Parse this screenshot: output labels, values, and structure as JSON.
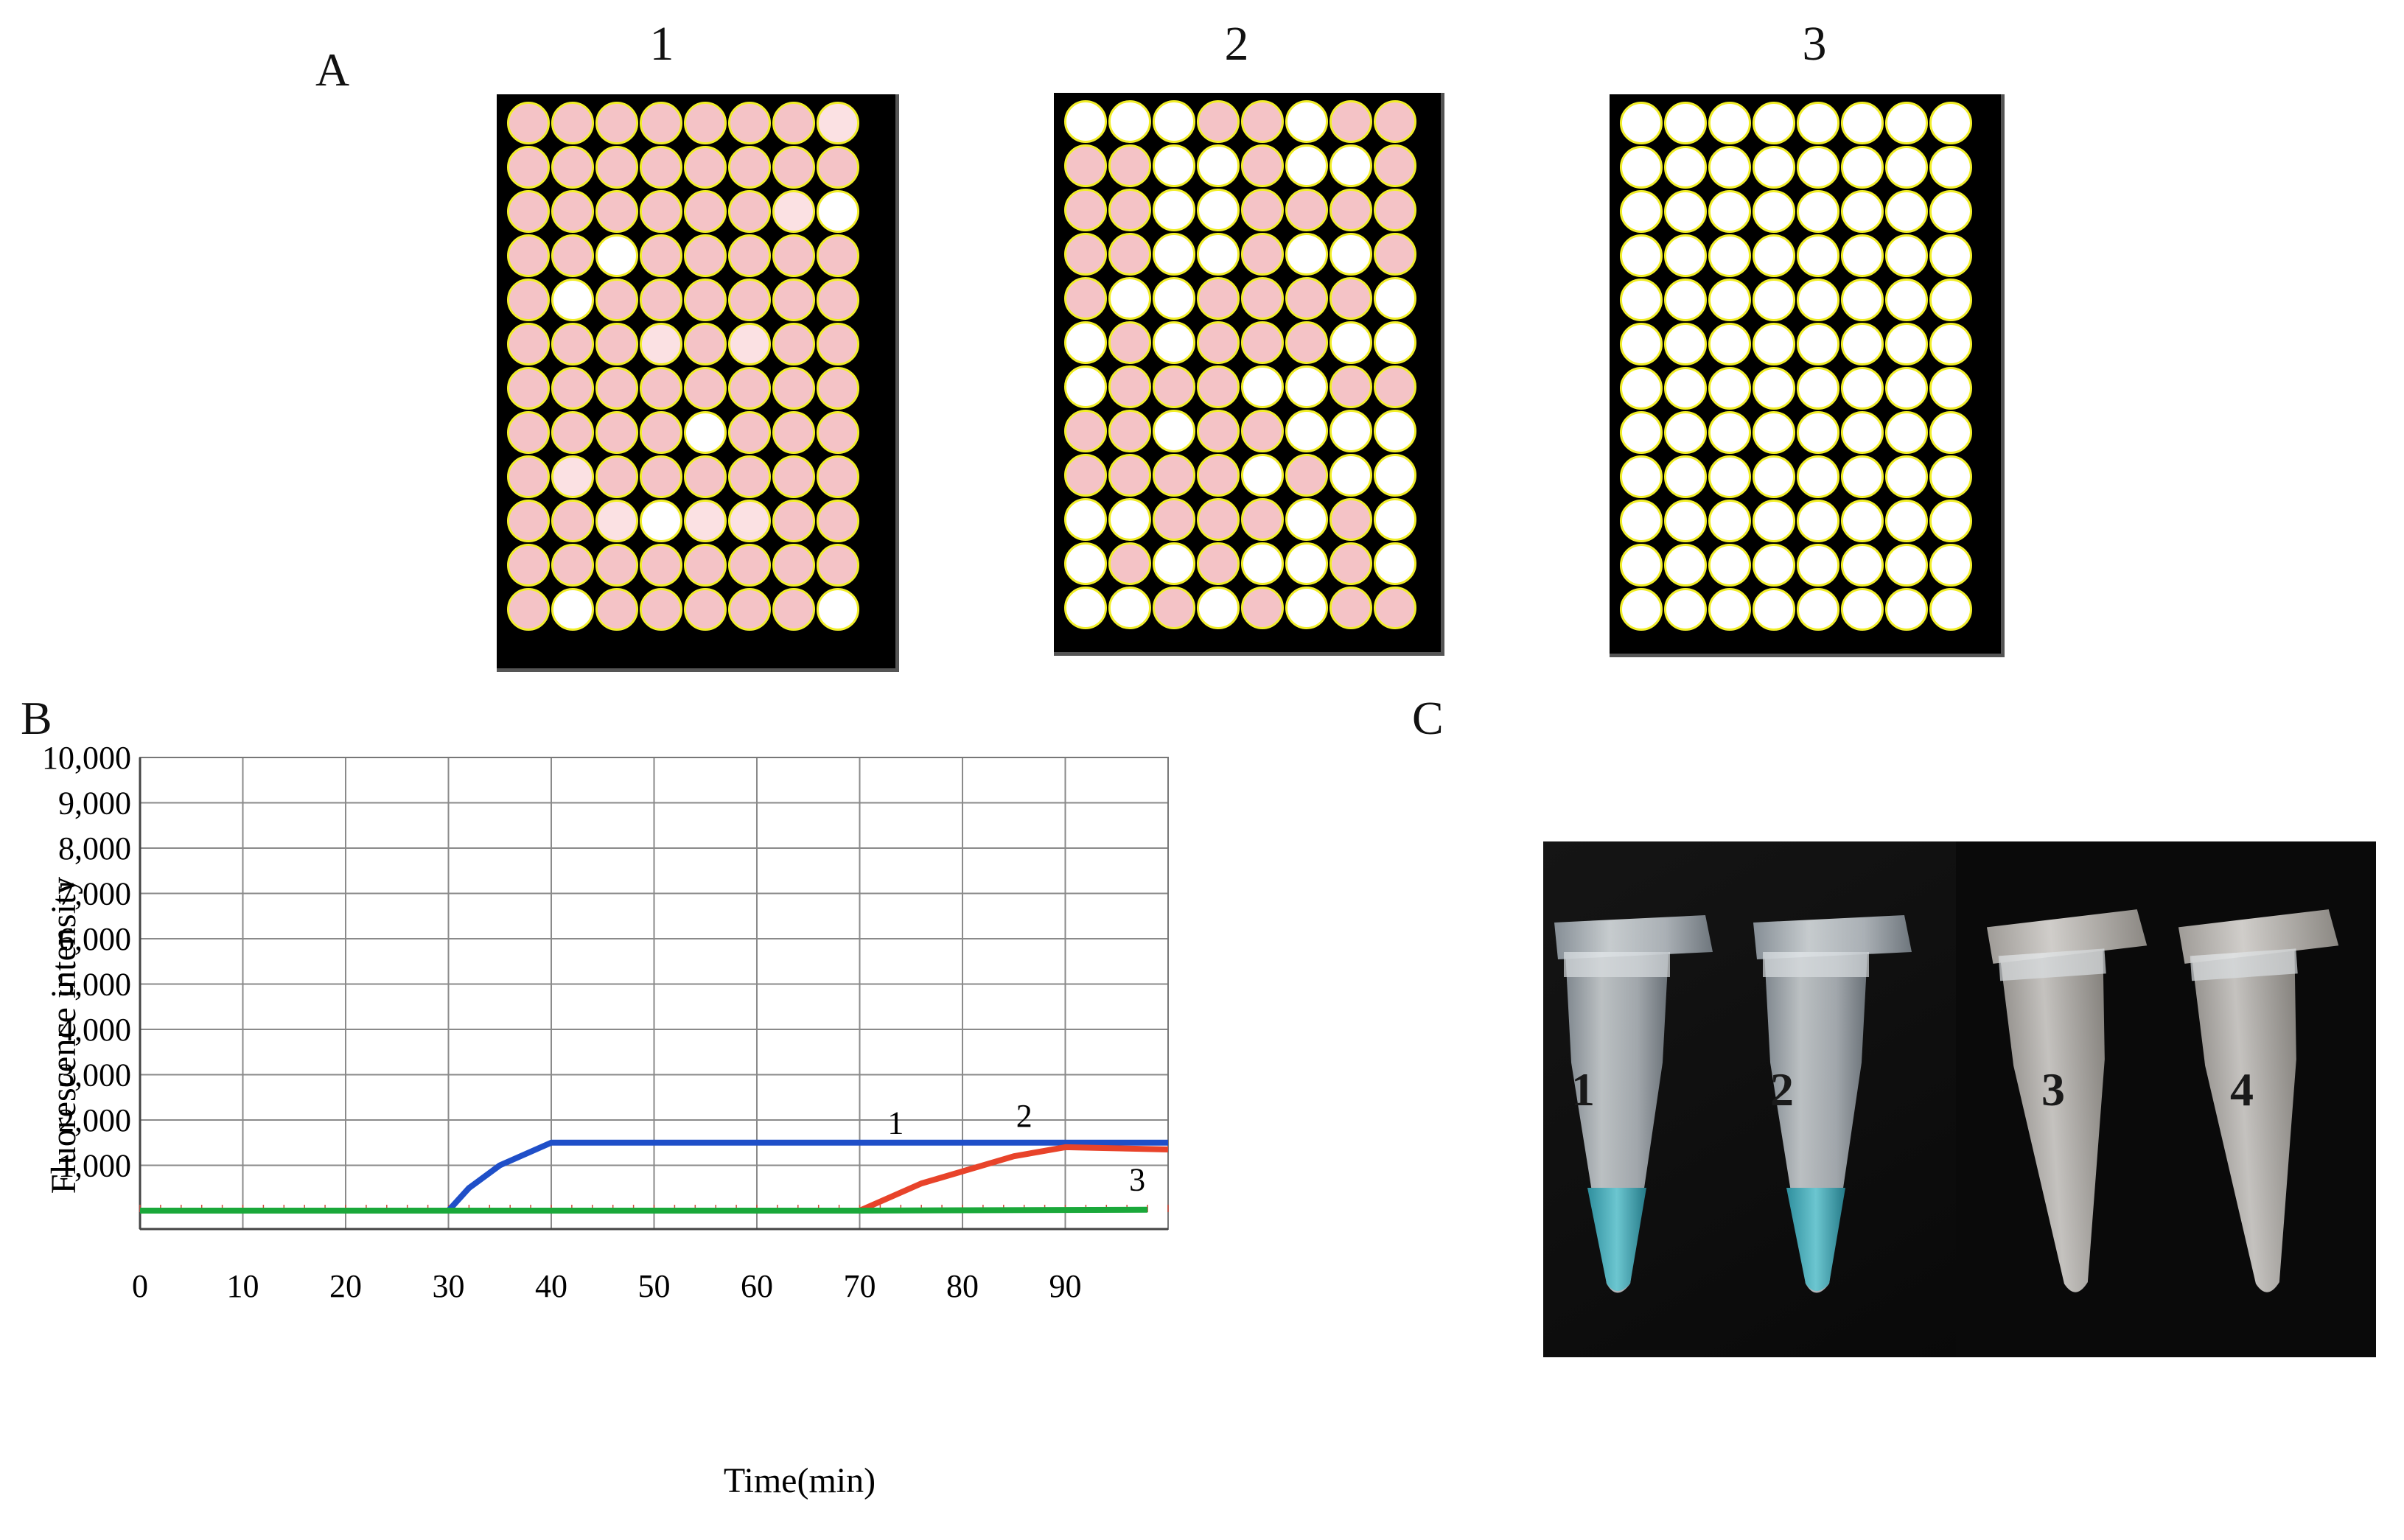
{
  "panels": {
    "a": "A",
    "b": "B",
    "c": "C"
  },
  "plates": [
    {
      "label": "1"
    },
    {
      "label": "2"
    },
    {
      "label": "3"
    }
  ],
  "colors": {
    "positive_well": "#f4c3c6",
    "negative_well": "#ffffff",
    "well_outline": "#f1ee2a",
    "plate_bg": "#000000",
    "tube_blue": "#3fa9b8"
  },
  "chart_data": {
    "type": "line",
    "title": "",
    "xlabel": "Time(min)",
    "ylabel": "Fluorescence intensity",
    "xlim": [
      0,
      100
    ],
    "ylim": [
      0,
      10000
    ],
    "xticks": [
      "0",
      "10",
      "20",
      "30",
      "40",
      "50",
      "60",
      "70",
      "80",
      "90"
    ],
    "yticks": [
      "1,000",
      "2,000",
      "3,000",
      "4,000",
      "5,000",
      "6,000",
      "7,000",
      "8,000",
      "9,000",
      "10,000"
    ],
    "grid": true,
    "series": [
      {
        "name": "1",
        "color": "#1f4fc8",
        "x": [
          0,
          30,
          32,
          35,
          40,
          100
        ],
        "y": [
          0,
          0,
          500,
          1000,
          1500,
          1500
        ]
      },
      {
        "name": "2",
        "color": "#e8432a",
        "x": [
          0,
          70,
          76,
          85,
          90,
          100
        ],
        "y": [
          0,
          0,
          600,
          1200,
          1400,
          1350
        ]
      },
      {
        "name": "3",
        "color": "#1aa83a",
        "x": [
          0,
          70,
          98
        ],
        "y": [
          0,
          0,
          20
        ]
      }
    ]
  },
  "tubes": [
    {
      "label": "1"
    },
    {
      "label": "2"
    },
    {
      "label": "3"
    },
    {
      "label": "4"
    }
  ]
}
